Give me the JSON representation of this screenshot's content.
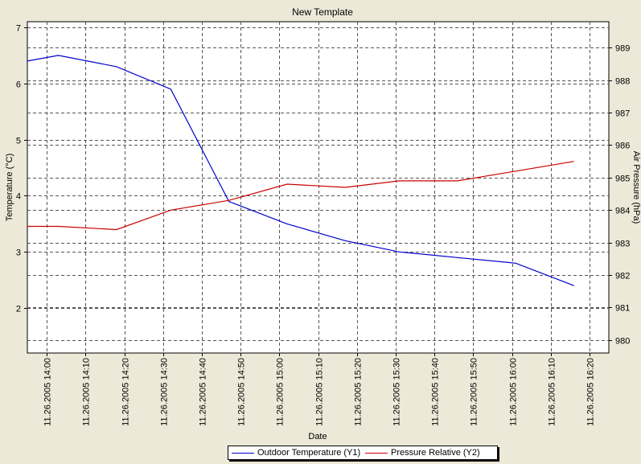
{
  "chart_data": {
    "type": "line",
    "title": "New Template",
    "xlabel": "Date",
    "ylabel": "Temperature (°C)",
    "y2label": "Air Pressure (hPa)",
    "ylim": [
      1.2,
      7.1
    ],
    "y2lim": [
      979.6,
      989.8
    ],
    "yticks": [
      2,
      3,
      4,
      5,
      6,
      7
    ],
    "y2ticks": [
      980,
      981,
      982,
      983,
      984,
      985,
      986,
      987,
      988,
      989
    ],
    "xlim": [
      "11.26.2005 13:55",
      "11.26.2005 16:25"
    ],
    "xticks": [
      "11.26.2005 14:00",
      "11.26.2005 14:10",
      "11.26.2005 14:20",
      "11.26.2005 14:30",
      "11.26.2005 14:40",
      "11.26.2005 14:50",
      "11.26.2005 15:00",
      "11.26.2005 15:10",
      "11.26.2005 15:20",
      "11.26.2005 15:30",
      "11.26.2005 15:40",
      "11.26.2005 15:50",
      "11.26.2005 16:00",
      "11.26.2005 16:10",
      "11.26.2005 16:20"
    ],
    "grid": true,
    "legend_position": "bottom",
    "series": [
      {
        "name": "Outdoor Temperature (Y1)",
        "axis": "y1",
        "color": "#0000cc",
        "x": [
          "11.26.2005 13:55",
          "11.26.2005 14:03",
          "11.26.2005 14:18",
          "11.26.2005 14:32",
          "11.26.2005 14:47",
          "11.26.2005 15:02",
          "11.26.2005 15:17",
          "11.26.2005 15:31",
          "11.26.2005 15:46",
          "11.26.2005 16:01",
          "11.26.2005 16:16"
        ],
        "values": [
          6.4,
          6.5,
          6.3,
          5.9,
          3.9,
          3.5,
          3.2,
          3.0,
          2.9,
          2.8,
          2.4
        ]
      },
      {
        "name": "Pressure Relative (Y2)",
        "axis": "y2",
        "color": "#cc0000",
        "x": [
          "11.26.2005 13:55",
          "11.26.2005 14:03",
          "11.26.2005 14:18",
          "11.26.2005 14:32",
          "11.26.2005 14:47",
          "11.26.2005 15:02",
          "11.26.2005 15:17",
          "11.26.2005 15:31",
          "11.26.2005 15:46",
          "11.26.2005 16:01",
          "11.26.2005 16:16"
        ],
        "values": [
          983.5,
          983.5,
          983.4,
          984.0,
          984.3,
          984.8,
          984.7,
          984.9,
          984.9,
          985.2,
          985.5
        ]
      }
    ]
  }
}
